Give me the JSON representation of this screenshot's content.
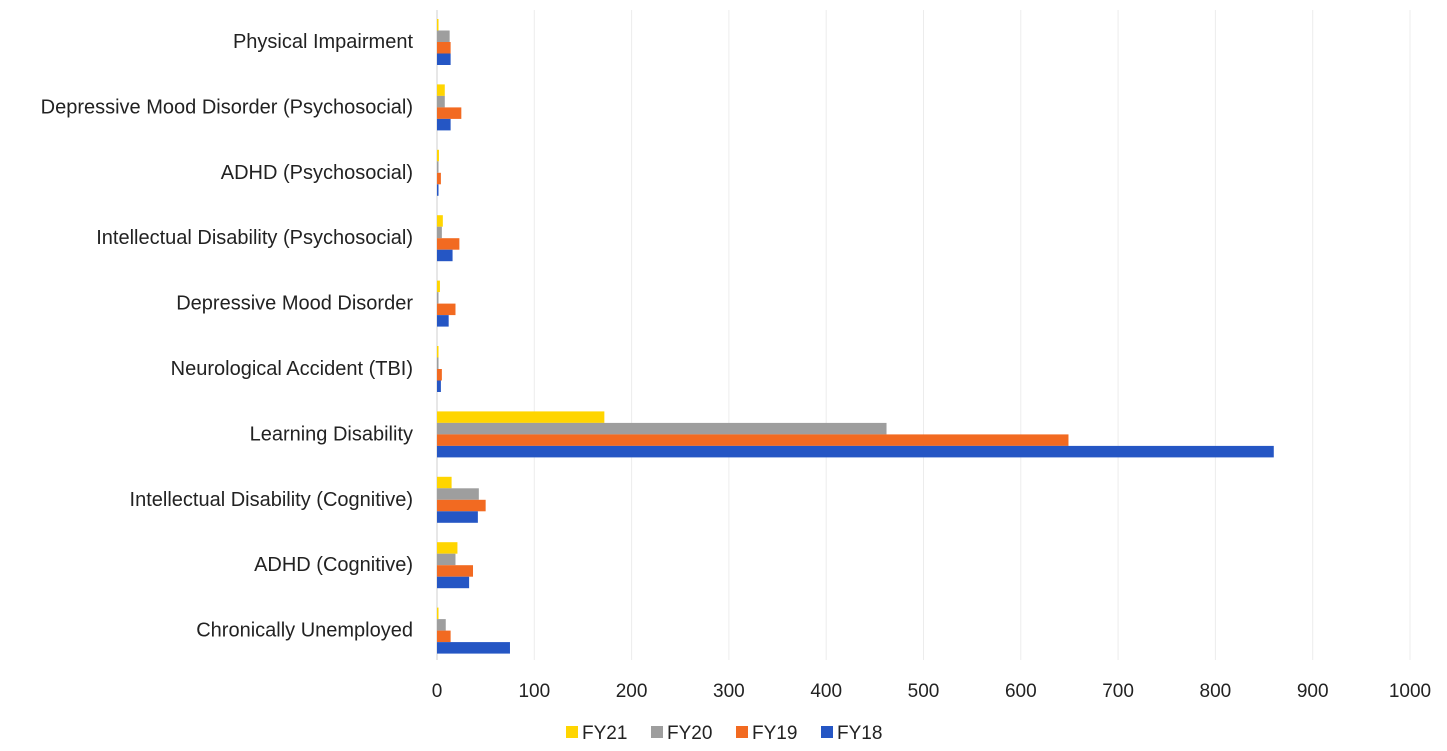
{
  "chart_data": {
    "type": "bar",
    "orientation": "horizontal",
    "categories": [
      "Physical Impairment",
      "Depressive Mood Disorder (Psychosocial)",
      "ADHD (Psychosocial)",
      "Intellectual Disability (Psychosocial)",
      "Depressive Mood Disorder",
      "Neurological Accident (TBI)",
      "Learning Disability",
      "Intellectual Disability (Cognitive)",
      "ADHD (Cognitive)",
      "Chronically Unemployed"
    ],
    "series": [
      {
        "name": "FY21",
        "color": "#FFD500",
        "values": [
          1,
          8,
          2,
          6,
          3,
          1,
          172,
          15,
          21,
          1
        ]
      },
      {
        "name": "FY20",
        "color": "#9E9E9E",
        "values": [
          13,
          8,
          1,
          5,
          1,
          1,
          462,
          43,
          19,
          9
        ]
      },
      {
        "name": "FY19",
        "color": "#F26A21",
        "values": [
          14,
          25,
          4,
          23,
          19,
          5,
          649,
          50,
          37,
          14
        ]
      },
      {
        "name": "FY18",
        "color": "#2556C4",
        "values": [
          14,
          14,
          1,
          16,
          12,
          4,
          860,
          42,
          33,
          75
        ]
      }
    ],
    "x_ticks": [
      "0",
      "100",
      "200",
      "300",
      "400",
      "500",
      "600",
      "700",
      "800",
      "900",
      "1000"
    ],
    "xlim": [
      0,
      1000
    ],
    "grid": true,
    "legend_position": "bottom",
    "title": "",
    "xlabel": "",
    "ylabel": ""
  }
}
